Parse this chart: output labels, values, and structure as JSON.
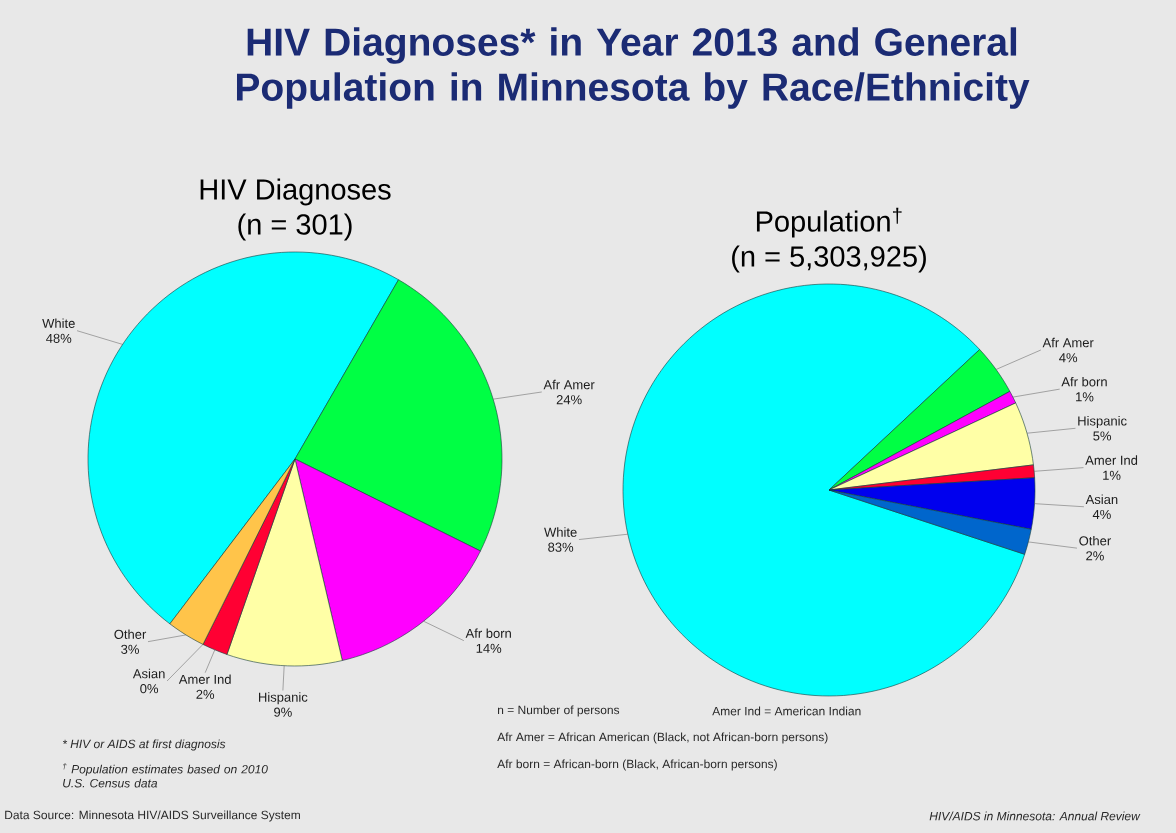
{
  "chart_data": [
    {
      "type": "pie",
      "title": "HIV Diagnoses",
      "subtitle": "(n = 301)",
      "categories": [
        "White",
        "Afr Amer",
        "Afr born",
        "Hispanic",
        "Amer Ind",
        "Asian",
        "Other"
      ],
      "values": [
        48,
        24,
        14,
        9,
        2,
        0,
        3
      ],
      "value_labels": [
        "48%",
        "24%",
        "14%",
        "9%",
        "2%",
        "0%",
        "3%"
      ],
      "colors": [
        "#00ffff",
        "#00ff44",
        "#ff00ff",
        "#ffffa6",
        "#ff0033",
        "#1a1a80",
        "#ffc44a"
      ],
      "annotations": [
        "HIV Diagnoses* in Year 2013 and General Population in Minnesota by Race/Ethnicity",
        "* HIV or AIDS at first diagnosis",
        "$^{†}$ Population estimates based on 2010 U.S. Census data",
        "Data Source: Minnesota HIV/AIDS Surveillance System"
      ]
    },
    {
      "type": "pie",
      "title": "Population$^{†}$",
      "subtitle": "(n = 5,303,925)",
      "categories": [
        "White",
        "Afr Amer",
        "Afr born",
        "Hispanic",
        "Amer Ind",
        "Asian",
        "Other"
      ],
      "values": [
        83,
        4,
        1,
        5,
        1,
        4,
        2
      ],
      "value_labels": [
        "83%",
        "4%",
        "1%",
        "5%",
        "1%",
        "4%",
        "2%"
      ],
      "colors": [
        "#00ffff",
        "#00ff44",
        "#ff00ff",
        "#ffffa6",
        "#ff0033",
        "#0000ee",
        "#0066cc"
      ],
      "annotations": [
        "n = Number of persons",
        "Amer Ind = American Indian",
        "Afr Amer = African American (Black, not African-born persons)",
        "Afr born = African-born (Black, African-born persons)",
        "HIV/AIDS in Minnesota: Annual Review"
      ]
    }
  ]
}
